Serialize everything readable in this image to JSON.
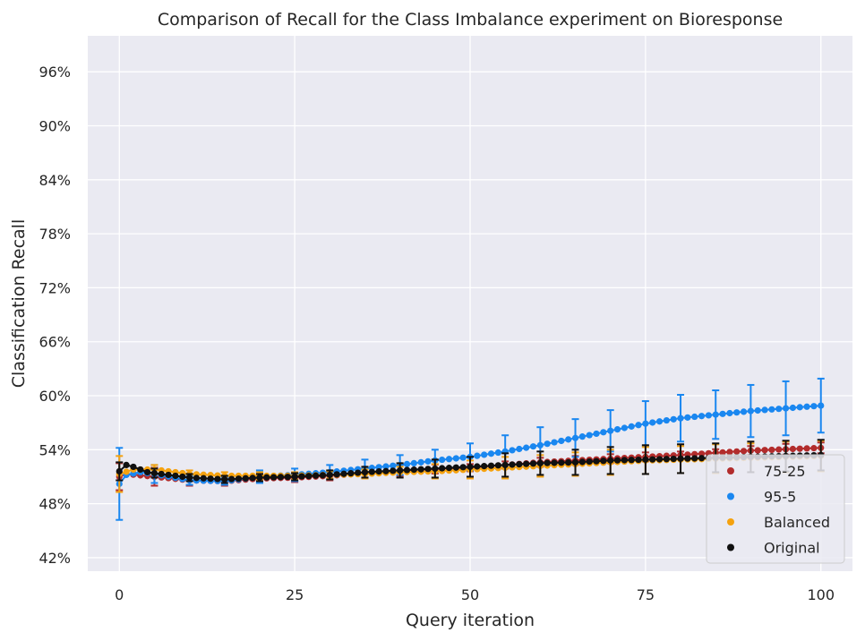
{
  "chart_data": {
    "type": "scatter",
    "title": "Comparison of Recall for the Class Imbalance experiment on Bioresponse",
    "xlabel": "Query iteration",
    "ylabel": "Classification Recall",
    "xlim": [
      -4.5,
      104.5
    ],
    "ylim": [
      40.5,
      100.0
    ],
    "xticks": [
      0,
      25,
      50,
      75,
      100
    ],
    "yticks": [
      42,
      48,
      54,
      60,
      66,
      72,
      78,
      84,
      90,
      96
    ],
    "ytick_suffix": "%",
    "grid": true,
    "legend_position": "lower-right",
    "errorbar_every": 5,
    "colors": {
      "background": "#eaeaf2",
      "grid": "#ffffff",
      "75-25": "#b22c2c",
      "95-5": "#1a87f0",
      "Balanced": "#f5a20f",
      "Original": "#101010"
    },
    "series": [
      {
        "name": "75-25",
        "color_key": "75-25",
        "anchors": [
          [
            0,
            51.0
          ],
          [
            1,
            51.3
          ],
          [
            5,
            51.0
          ],
          [
            10,
            50.6
          ],
          [
            15,
            50.5
          ],
          [
            20,
            50.8
          ],
          [
            25,
            50.9
          ],
          [
            30,
            51.1
          ],
          [
            40,
            51.7
          ],
          [
            50,
            52.0
          ],
          [
            60,
            52.6
          ],
          [
            70,
            53.0
          ],
          [
            80,
            53.4
          ],
          [
            90,
            53.9
          ],
          [
            100,
            54.2
          ]
        ],
        "err": [
          [
            0,
            1.5
          ],
          [
            5,
            1.0
          ],
          [
            10,
            0.6
          ],
          [
            15,
            0.5
          ],
          [
            20,
            0.5
          ],
          [
            25,
            0.5
          ],
          [
            30,
            0.5
          ],
          [
            35,
            0.5
          ],
          [
            40,
            0.6
          ],
          [
            45,
            0.5
          ],
          [
            50,
            0.4
          ],
          [
            55,
            0.4
          ],
          [
            60,
            0.5
          ],
          [
            65,
            0.5
          ],
          [
            70,
            0.5
          ],
          [
            75,
            0.5
          ],
          [
            80,
            0.4
          ],
          [
            85,
            0.4
          ],
          [
            90,
            0.5
          ],
          [
            95,
            0.6
          ],
          [
            100,
            0.6
          ]
        ]
      },
      {
        "name": "95-5",
        "color_key": "95-5",
        "anchors": [
          [
            0,
            50.2
          ],
          [
            1,
            51.2
          ],
          [
            3,
            51.5
          ],
          [
            5,
            51.3
          ],
          [
            10,
            50.6
          ],
          [
            15,
            50.5
          ],
          [
            20,
            51.0
          ],
          [
            25,
            51.2
          ],
          [
            30,
            51.5
          ],
          [
            35,
            51.9
          ],
          [
            40,
            52.3
          ],
          [
            45,
            52.8
          ],
          [
            50,
            53.2
          ],
          [
            55,
            53.8
          ],
          [
            60,
            54.5
          ],
          [
            65,
            55.3
          ],
          [
            70,
            56.1
          ],
          [
            75,
            56.9
          ],
          [
            80,
            57.5
          ],
          [
            85,
            57.9
          ],
          [
            90,
            58.3
          ],
          [
            95,
            58.6
          ],
          [
            100,
            58.9
          ]
        ],
        "err": [
          [
            0,
            4.0
          ],
          [
            5,
            1.0
          ],
          [
            10,
            0.5
          ],
          [
            15,
            0.4
          ],
          [
            20,
            0.7
          ],
          [
            25,
            0.7
          ],
          [
            30,
            0.8
          ],
          [
            35,
            1.0
          ],
          [
            40,
            1.1
          ],
          [
            45,
            1.2
          ],
          [
            50,
            1.5
          ],
          [
            55,
            1.8
          ],
          [
            60,
            2.0
          ],
          [
            65,
            2.1
          ],
          [
            70,
            2.3
          ],
          [
            75,
            2.5
          ],
          [
            80,
            2.6
          ],
          [
            85,
            2.7
          ],
          [
            90,
            2.9
          ],
          [
            95,
            3.0
          ],
          [
            100,
            3.0
          ]
        ]
      },
      {
        "name": "Balanced",
        "color_key": "Balanced",
        "anchors": [
          [
            0,
            51.3
          ],
          [
            2,
            51.8
          ],
          [
            5,
            51.8
          ],
          [
            10,
            51.3
          ],
          [
            15,
            51.1
          ],
          [
            20,
            51.1
          ],
          [
            25,
            51.1
          ],
          [
            30,
            51.2
          ],
          [
            35,
            51.3
          ],
          [
            40,
            51.5
          ],
          [
            45,
            51.6
          ],
          [
            50,
            51.8
          ],
          [
            55,
            52.0
          ],
          [
            60,
            52.2
          ],
          [
            65,
            52.4
          ],
          [
            70,
            52.6
          ],
          [
            75,
            52.8
          ],
          [
            80,
            52.9
          ],
          [
            85,
            53.0
          ],
          [
            90,
            53.1
          ],
          [
            95,
            53.2
          ],
          [
            100,
            53.3
          ]
        ],
        "err": [
          [
            0,
            2.0
          ],
          [
            5,
            0.5
          ],
          [
            10,
            0.4
          ],
          [
            15,
            0.4
          ],
          [
            20,
            0.4
          ],
          [
            25,
            0.4
          ],
          [
            30,
            0.4
          ],
          [
            35,
            0.5
          ],
          [
            40,
            0.6
          ],
          [
            45,
            0.8
          ],
          [
            50,
            1.0
          ],
          [
            55,
            1.2
          ],
          [
            60,
            1.2
          ],
          [
            65,
            1.3
          ],
          [
            70,
            1.4
          ],
          [
            75,
            1.5
          ],
          [
            80,
            1.5
          ],
          [
            85,
            1.6
          ],
          [
            90,
            1.6
          ],
          [
            95,
            1.7
          ],
          [
            100,
            1.7
          ]
        ]
      },
      {
        "name": "Original",
        "color_key": "Original",
        "anchors": [
          [
            0,
            51.6
          ],
          [
            1,
            52.3
          ],
          [
            2,
            52.1
          ],
          [
            4,
            51.5
          ],
          [
            10,
            50.9
          ],
          [
            15,
            50.7
          ],
          [
            20,
            50.9
          ],
          [
            25,
            51.0
          ],
          [
            30,
            51.2
          ],
          [
            35,
            51.5
          ],
          [
            40,
            51.7
          ],
          [
            45,
            51.9
          ],
          [
            50,
            52.1
          ],
          [
            55,
            52.3
          ],
          [
            60,
            52.5
          ],
          [
            65,
            52.6
          ],
          [
            70,
            52.8
          ],
          [
            75,
            52.9
          ],
          [
            80,
            53.0
          ],
          [
            85,
            53.1
          ],
          [
            90,
            53.2
          ],
          [
            95,
            53.3
          ],
          [
            100,
            53.4
          ]
        ],
        "err": [
          [
            0,
            1.0
          ],
          [
            5,
            0.5
          ],
          [
            10,
            0.4
          ],
          [
            15,
            0.4
          ],
          [
            20,
            0.4
          ],
          [
            25,
            0.4
          ],
          [
            30,
            0.5
          ],
          [
            35,
            0.6
          ],
          [
            40,
            0.8
          ],
          [
            45,
            1.0
          ],
          [
            50,
            1.1
          ],
          [
            55,
            1.3
          ],
          [
            60,
            1.3
          ],
          [
            65,
            1.4
          ],
          [
            70,
            1.5
          ],
          [
            75,
            1.6
          ],
          [
            80,
            1.6
          ],
          [
            85,
            1.6
          ],
          [
            90,
            1.7
          ],
          [
            95,
            1.7
          ],
          [
            100,
            1.7
          ]
        ]
      }
    ]
  }
}
